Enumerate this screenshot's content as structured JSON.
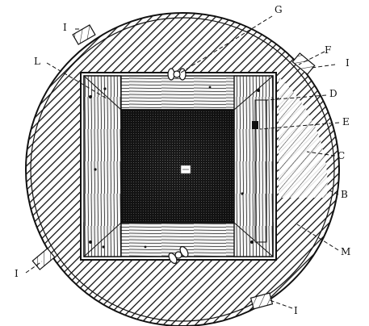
{
  "figure": {
    "labels": {
      "G": "G",
      "L": "L",
      "F": "F",
      "I_top_left": "I",
      "I_top_right": "I",
      "I_bottom_left": "I",
      "I_bottom_right": "I",
      "D": "D",
      "E": "E",
      "C": "C",
      "B": "B",
      "M": "M"
    },
    "colors": {
      "ink": "#111111",
      "wood_light": "#f2f2f2",
      "mesh": "#1a1a1a",
      "paper": "#ffffff"
    }
  }
}
